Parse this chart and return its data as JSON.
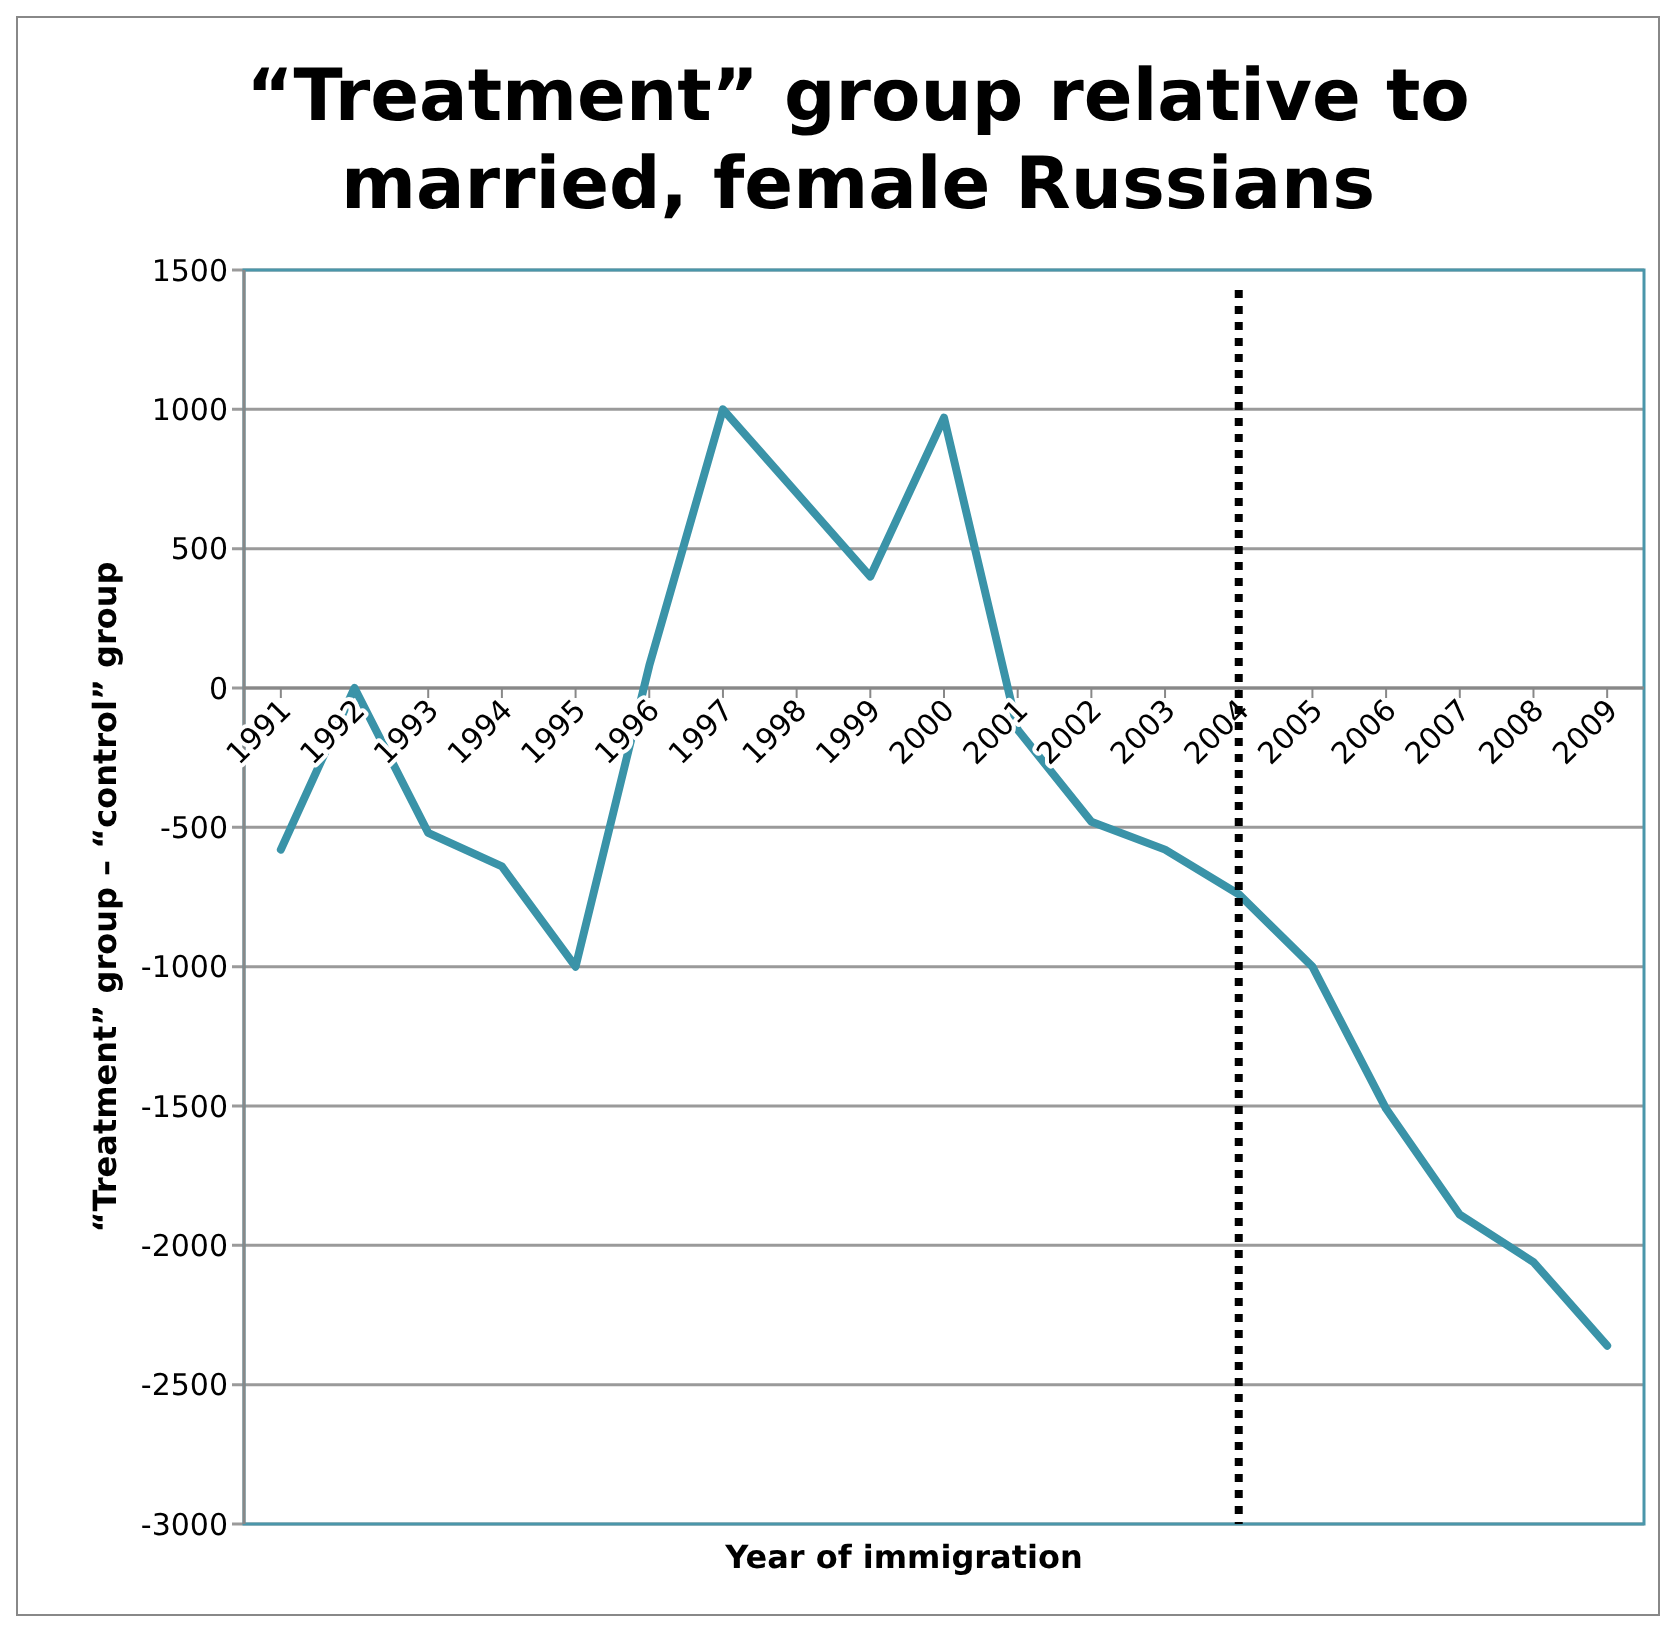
{
  "chart_data": {
    "type": "line",
    "title": "“Treatment” group relative to married, female Russians",
    "xlabel": "Year of immigration",
    "ylabel": "“Treatment” group – “control” group",
    "categories": [
      "1991",
      "1992",
      "1993",
      "1994",
      "1995",
      "1996",
      "1997",
      "1998",
      "1999",
      "2000",
      "2001",
      "2002",
      "2003",
      "2004",
      "2005",
      "2006",
      "2007",
      "2008",
      "2009"
    ],
    "series": [
      {
        "color": "#3a93a8",
        "values": [
          -580,
          0,
          -520,
          -640,
          -1000,
          80,
          1000,
          700,
          400,
          970,
          -150,
          -480,
          -580,
          -740,
          -1000,
          -1510,
          -1890,
          -2060,
          -2360
        ]
      }
    ],
    "ylim": [
      -3000,
      1500
    ],
    "yticks": [
      -3000,
      -2500,
      -2000,
      -1500,
      -1000,
      -500,
      0,
      500,
      1000,
      1500
    ],
    "grid": "y",
    "marker": "none",
    "line_style": "solid",
    "ref_lines": [
      {
        "axis": "x",
        "value": "2004",
        "color": "#000000",
        "line_style": "dotted"
      }
    ]
  }
}
